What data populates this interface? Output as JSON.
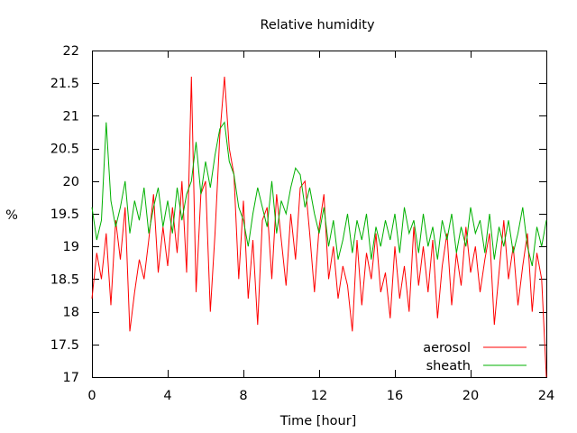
{
  "chart_data": {
    "type": "line",
    "title": "Relative humidity",
    "xlabel": "Time [hour]",
    "ylabel": "%",
    "xlim": [
      0,
      24
    ],
    "ylim": [
      17,
      22
    ],
    "x_ticks": [
      0,
      4,
      8,
      12,
      16,
      20,
      24
    ],
    "y_ticks": [
      17,
      17.5,
      18,
      18.5,
      19,
      19.5,
      20,
      20.5,
      21,
      21.5,
      22
    ],
    "grid": false,
    "legend_position": "bottom-right",
    "series": [
      {
        "name": "aerosol",
        "color": "#ff0000",
        "x": [
          0,
          0.25,
          0.5,
          0.75,
          1,
          1.25,
          1.5,
          1.75,
          2,
          2.25,
          2.5,
          2.75,
          3,
          3.25,
          3.5,
          3.75,
          4,
          4.25,
          4.5,
          4.75,
          5,
          5.25,
          5.5,
          5.75,
          6,
          6.25,
          6.5,
          6.75,
          7,
          7.25,
          7.5,
          7.75,
          8,
          8.25,
          8.5,
          8.75,
          9,
          9.25,
          9.5,
          9.75,
          10,
          10.25,
          10.5,
          10.75,
          11,
          11.25,
          11.5,
          11.75,
          12,
          12.25,
          12.5,
          12.75,
          13,
          13.25,
          13.5,
          13.75,
          14,
          14.25,
          14.5,
          14.75,
          15,
          15.25,
          15.5,
          15.75,
          16,
          16.25,
          16.5,
          16.75,
          17,
          17.25,
          17.5,
          17.75,
          18,
          18.25,
          18.5,
          18.75,
          19,
          19.25,
          19.5,
          19.75,
          20,
          20.25,
          20.5,
          20.75,
          21,
          21.25,
          21.5,
          21.75,
          22,
          22.25,
          22.5,
          22.75,
          23,
          23.25,
          23.5,
          23.75,
          24
        ],
        "values": [
          18.2,
          18.9,
          18.5,
          19.2,
          18.1,
          19.4,
          18.8,
          19.6,
          17.7,
          18.3,
          18.8,
          18.5,
          19.1,
          19.8,
          18.6,
          19.3,
          18.7,
          19.6,
          18.9,
          20.0,
          18.6,
          21.6,
          18.3,
          19.8,
          20.0,
          18.0,
          19.2,
          20.7,
          21.6,
          20.5,
          20.1,
          18.5,
          19.7,
          18.2,
          19.1,
          17.8,
          19.4,
          19.6,
          18.5,
          19.8,
          19.1,
          18.4,
          19.5,
          18.8,
          19.9,
          20.0,
          19.2,
          18.3,
          19.3,
          19.8,
          18.5,
          19.0,
          18.2,
          18.7,
          18.4,
          17.7,
          19.1,
          18.1,
          18.9,
          18.5,
          19.2,
          18.3,
          18.6,
          17.9,
          19.0,
          18.2,
          18.7,
          18.0,
          19.3,
          18.4,
          19.0,
          18.3,
          19.1,
          17.9,
          18.7,
          19.2,
          18.1,
          18.9,
          18.4,
          19.3,
          18.6,
          19.0,
          18.3,
          18.8,
          19.2,
          17.8,
          18.6,
          19.4,
          18.5,
          19.0,
          18.1,
          18.7,
          19.2,
          18.0,
          18.9,
          18.5,
          17.0
        ]
      },
      {
        "name": "sheath",
        "color": "#00b000",
        "x": [
          0,
          0.25,
          0.5,
          0.75,
          1,
          1.25,
          1.5,
          1.75,
          2,
          2.25,
          2.5,
          2.75,
          3,
          3.25,
          3.5,
          3.75,
          4,
          4.25,
          4.5,
          4.75,
          5,
          5.25,
          5.5,
          5.75,
          6,
          6.25,
          6.5,
          6.75,
          7,
          7.25,
          7.5,
          7.75,
          8,
          8.25,
          8.5,
          8.75,
          9,
          9.25,
          9.5,
          9.75,
          10,
          10.25,
          10.5,
          10.75,
          11,
          11.25,
          11.5,
          11.75,
          12,
          12.25,
          12.5,
          12.75,
          13,
          13.25,
          13.5,
          13.75,
          14,
          14.25,
          14.5,
          14.75,
          15,
          15.25,
          15.5,
          15.75,
          16,
          16.25,
          16.5,
          16.75,
          17,
          17.25,
          17.5,
          17.75,
          18,
          18.25,
          18.5,
          18.75,
          19,
          19.25,
          19.5,
          19.75,
          20,
          20.25,
          20.5,
          20.75,
          21,
          21.25,
          21.5,
          21.75,
          22,
          22.25,
          22.5,
          22.75,
          23,
          23.25,
          23.5,
          23.75,
          24
        ],
        "values": [
          19.6,
          19.1,
          19.4,
          20.9,
          19.7,
          19.3,
          19.6,
          20.0,
          19.2,
          19.7,
          19.4,
          19.9,
          19.2,
          19.6,
          19.9,
          19.3,
          19.7,
          19.2,
          19.9,
          19.4,
          19.8,
          20.0,
          20.6,
          19.8,
          20.3,
          19.9,
          20.4,
          20.8,
          20.9,
          20.3,
          20.1,
          19.6,
          19.4,
          19.0,
          19.5,
          19.9,
          19.6,
          19.3,
          20.0,
          19.2,
          19.7,
          19.5,
          19.9,
          20.2,
          20.1,
          19.6,
          19.9,
          19.5,
          19.2,
          19.6,
          19.0,
          19.4,
          18.8,
          19.1,
          19.5,
          18.9,
          19.4,
          19.1,
          19.5,
          18.8,
          19.3,
          19.0,
          19.4,
          19.1,
          19.5,
          18.9,
          19.6,
          19.2,
          19.4,
          18.9,
          19.5,
          19.0,
          19.3,
          18.8,
          19.4,
          19.1,
          19.5,
          18.9,
          19.3,
          19.0,
          19.6,
          19.2,
          19.4,
          18.9,
          19.5,
          18.8,
          19.3,
          19.0,
          19.4,
          18.9,
          19.2,
          19.6,
          19.0,
          18.7,
          19.3,
          19.0,
          19.4
        ]
      }
    ]
  }
}
